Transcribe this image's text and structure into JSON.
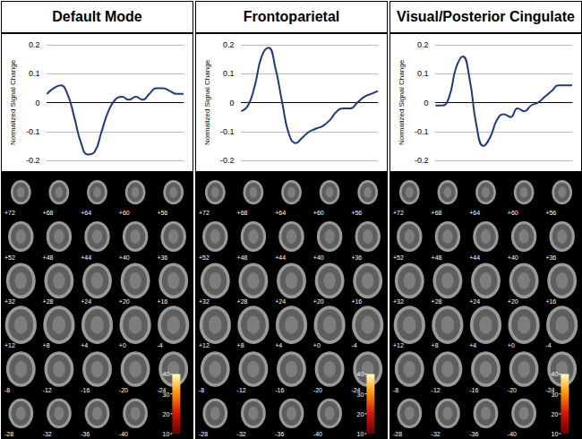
{
  "chart_data": [
    {
      "type": "line",
      "title": "Default Mode",
      "y_label": "Normalized Signal Change",
      "x": [
        0,
        1,
        2,
        3,
        4,
        5,
        6,
        7,
        8,
        9,
        10,
        11,
        12,
        13,
        14,
        15,
        16,
        17,
        18,
        19,
        20
      ],
      "values": [
        0.03,
        0.05,
        0.06,
        0.03,
        -0.05,
        -0.14,
        -0.18,
        -0.17,
        -0.1,
        -0.03,
        0.01,
        0.02,
        0.01,
        0.02,
        0.01,
        0.03,
        0.05,
        0.05,
        0.04,
        0.03,
        0.03
      ],
      "color": "#1f3a7a",
      "xlim": [
        0,
        20
      ],
      "ylim": [
        -0.2,
        0.2
      ],
      "yticks": [
        -0.2,
        -0.1,
        0,
        0.1,
        0.2
      ],
      "grid": true,
      "tick_labels": "y",
      "slice_labels": [
        [
          "+72",
          "+68",
          "+64",
          "+60",
          "+56"
        ],
        [
          "+52",
          "+48",
          "+44",
          "+40",
          "+36"
        ],
        [
          "+32",
          "+28",
          "+24",
          "+20",
          "+16"
        ],
        [
          "+12",
          "+8",
          "+4",
          "+0",
          "-4"
        ],
        [
          "-8",
          "-12",
          "-16",
          "-20",
          "-24"
        ],
        [
          "-28",
          "-32",
          "-36",
          "-40"
        ]
      ],
      "colorbar_range": [
        10,
        40
      ],
      "colorbar_ticks": [
        10,
        20,
        30,
        40
      ]
    },
    {
      "type": "line",
      "title": "Frontoparietal",
      "y_label": "Normalized Signal Change",
      "x": [
        0,
        1,
        2,
        3,
        4,
        5,
        6,
        7,
        8,
        9,
        10,
        11,
        12,
        13,
        14,
        15,
        16,
        17,
        18,
        19,
        20
      ],
      "values": [
        -0.03,
        -0.01,
        0.06,
        0.16,
        0.19,
        0.12,
        0.0,
        -0.11,
        -0.14,
        -0.12,
        -0.1,
        -0.09,
        -0.08,
        -0.06,
        -0.03,
        -0.02,
        -0.02,
        0.0,
        0.02,
        0.03,
        0.04
      ],
      "color": "#1f3a7a",
      "xlim": [
        0,
        20
      ],
      "ylim": [
        -0.2,
        0.2
      ],
      "yticks": [
        -0.2,
        -0.1,
        0,
        0.1,
        0.2
      ],
      "grid": true,
      "tick_labels": "y",
      "slice_labels": [
        [
          "+72",
          "+68",
          "+64",
          "+60",
          "+56"
        ],
        [
          "+52",
          "+48",
          "+44",
          "+40",
          "+36"
        ],
        [
          "+32",
          "+28",
          "+24",
          "+20",
          "+16"
        ],
        [
          "+12",
          "+8",
          "+4",
          "+0",
          "-4"
        ],
        [
          "-8",
          "-12",
          "-16",
          "-20",
          "-24"
        ],
        [
          "-28",
          "-32",
          "-36",
          "-40"
        ]
      ],
      "colorbar_range": [
        10,
        40
      ],
      "colorbar_ticks": [
        10,
        20,
        30,
        40
      ]
    },
    {
      "type": "line",
      "title": "Visual/Posterior Cingulate",
      "y_label": "Normalized Signal Change",
      "x": [
        0,
        1,
        2,
        3,
        4,
        5,
        6,
        7,
        8,
        9,
        10,
        11,
        12,
        13,
        14,
        15,
        16,
        17,
        18,
        19,
        20
      ],
      "values": [
        -0.01,
        -0.01,
        0.02,
        0.12,
        0.16,
        0.08,
        -0.08,
        -0.15,
        -0.12,
        -0.06,
        -0.04,
        -0.05,
        -0.02,
        -0.03,
        -0.01,
        0.0,
        0.02,
        0.04,
        0.06,
        0.06,
        0.06
      ],
      "color": "#1f3a7a",
      "xlim": [
        0,
        20
      ],
      "ylim": [
        -0.2,
        0.2
      ],
      "yticks": [
        -0.2,
        -0.1,
        0,
        0.1,
        0.2
      ],
      "grid": true,
      "tick_labels": "y",
      "slice_labels": [
        [
          "+72",
          "+68",
          "+64",
          "+60",
          "+56"
        ],
        [
          "+52",
          "+48",
          "+44",
          "+40",
          "+36"
        ],
        [
          "+32",
          "+28",
          "+24",
          "+20",
          "+16"
        ],
        [
          "+12",
          "+8",
          "+4",
          "+0",
          "-4"
        ],
        [
          "-8",
          "-12",
          "-16",
          "-20",
          "-24"
        ],
        [
          "-28",
          "-32",
          "-36",
          "-40"
        ]
      ],
      "colorbar_range": [
        10,
        40
      ],
      "colorbar_ticks": [
        10,
        20,
        30,
        40
      ]
    }
  ]
}
